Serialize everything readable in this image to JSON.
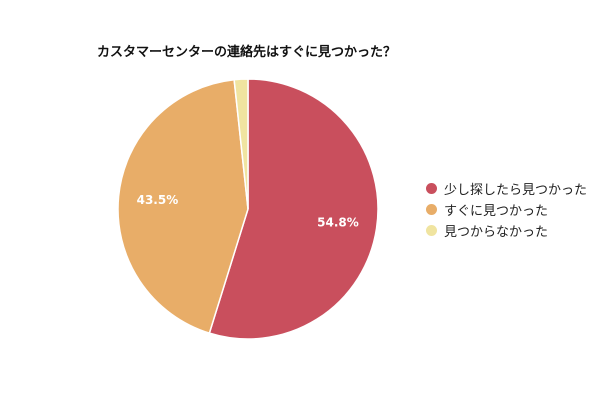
{
  "chart_data": {
    "type": "pie",
    "title": "カスタマーセンターの連絡先はすぐに見つかった？",
    "slices": [
      {
        "label": "少し探したら見つかった",
        "value": 54.8,
        "value_label": "54.8%",
        "color": "#c94f5d"
      },
      {
        "label": "すぐに見つかった",
        "value": 43.5,
        "value_label": "43.5%",
        "color": "#e8ad68"
      },
      {
        "label": "見つからなかった",
        "value": 1.7,
        "value_label": "",
        "color": "#f0e4a0"
      }
    ],
    "start_angle": "12 o'clock",
    "direction": "clockwise",
    "legend_position": "right"
  }
}
